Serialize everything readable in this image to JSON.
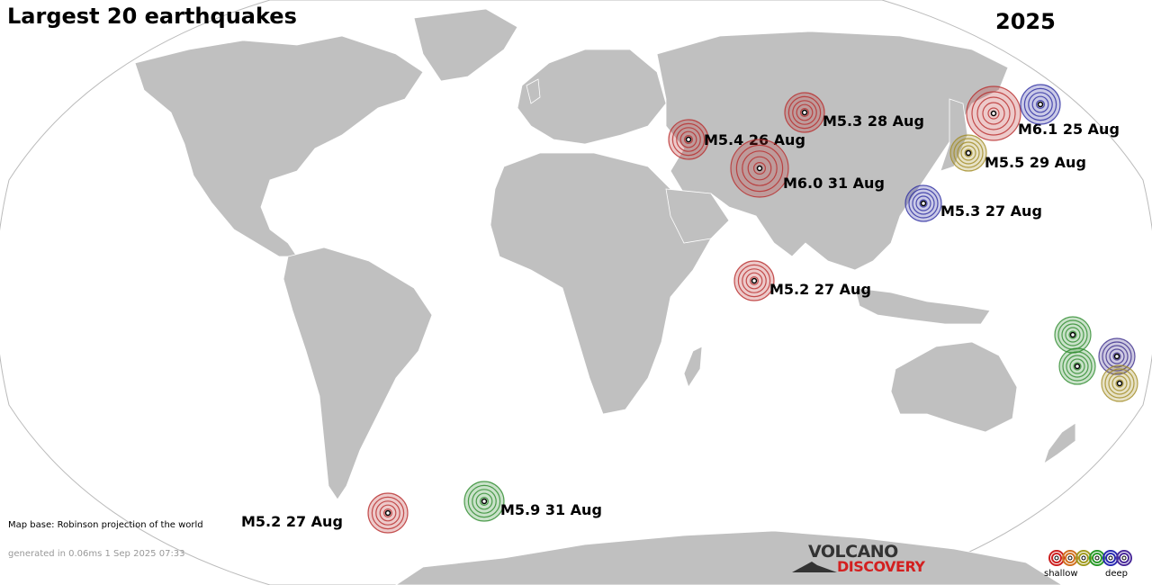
{
  "map": {
    "title": "Largest 20 earthquakes",
    "year": "2025",
    "map_base_note": "Map base: Robinson projection of the world",
    "generated_note": "generated in 0.06ms  1 Sep 2025 07:33",
    "land_color": "#c0c0c0",
    "ocean_color": "#ffffff",
    "border_color": "#ffffff"
  },
  "earthquakes": [
    {
      "label": "M5.4 26 Aug",
      "color": "#b82a2a",
      "depth_class": "shallow"
    },
    {
      "label": "M5.3 28 Aug",
      "color": "#b82a2a",
      "depth_class": "shallow"
    },
    {
      "label": "M6.1 25 Aug",
      "color": "#b82a2a",
      "depth_class": "shallow"
    },
    {
      "label": "M6.0 31 Aug",
      "color": "#b82a2a",
      "depth_class": "shallow"
    },
    {
      "label": "M5.5 29 Aug",
      "color": "#a08a20",
      "depth_class": "intermediate"
    },
    {
      "label": "M5.3 27 Aug",
      "color": "#2a2aa0",
      "depth_class": "deep"
    },
    {
      "label": "M5.2 27 Aug",
      "color": "#b82a2a",
      "depth_class": "shallow"
    },
    {
      "label": "M5.2 27 Aug",
      "color": "#b82a2a",
      "depth_class": "shallow"
    },
    {
      "label": "M5.9 31 Aug",
      "color": "#2a8a2a",
      "depth_class": "intermediate"
    },
    {
      "label": "",
      "color": "#2a2aa0",
      "depth_class": "deep"
    },
    {
      "label": "",
      "color": "#2a8a2a",
      "depth_class": "intermediate"
    },
    {
      "label": "",
      "color": "#2a8a2a",
      "depth_class": "intermediate"
    },
    {
      "label": "",
      "color": "#3a2a8a",
      "depth_class": "deep"
    },
    {
      "label": "",
      "color": "#a08a20",
      "depth_class": "intermediate"
    }
  ],
  "logo": {
    "line1": "VOLCANO",
    "line2": "DISCOVERY"
  },
  "legend": {
    "shallow_label": "shallow",
    "deep_label": "deep",
    "colors": [
      "#cc2020",
      "#d07020",
      "#a09a20",
      "#2a9a2a",
      "#2a2ab0",
      "#4a2a9a"
    ]
  }
}
